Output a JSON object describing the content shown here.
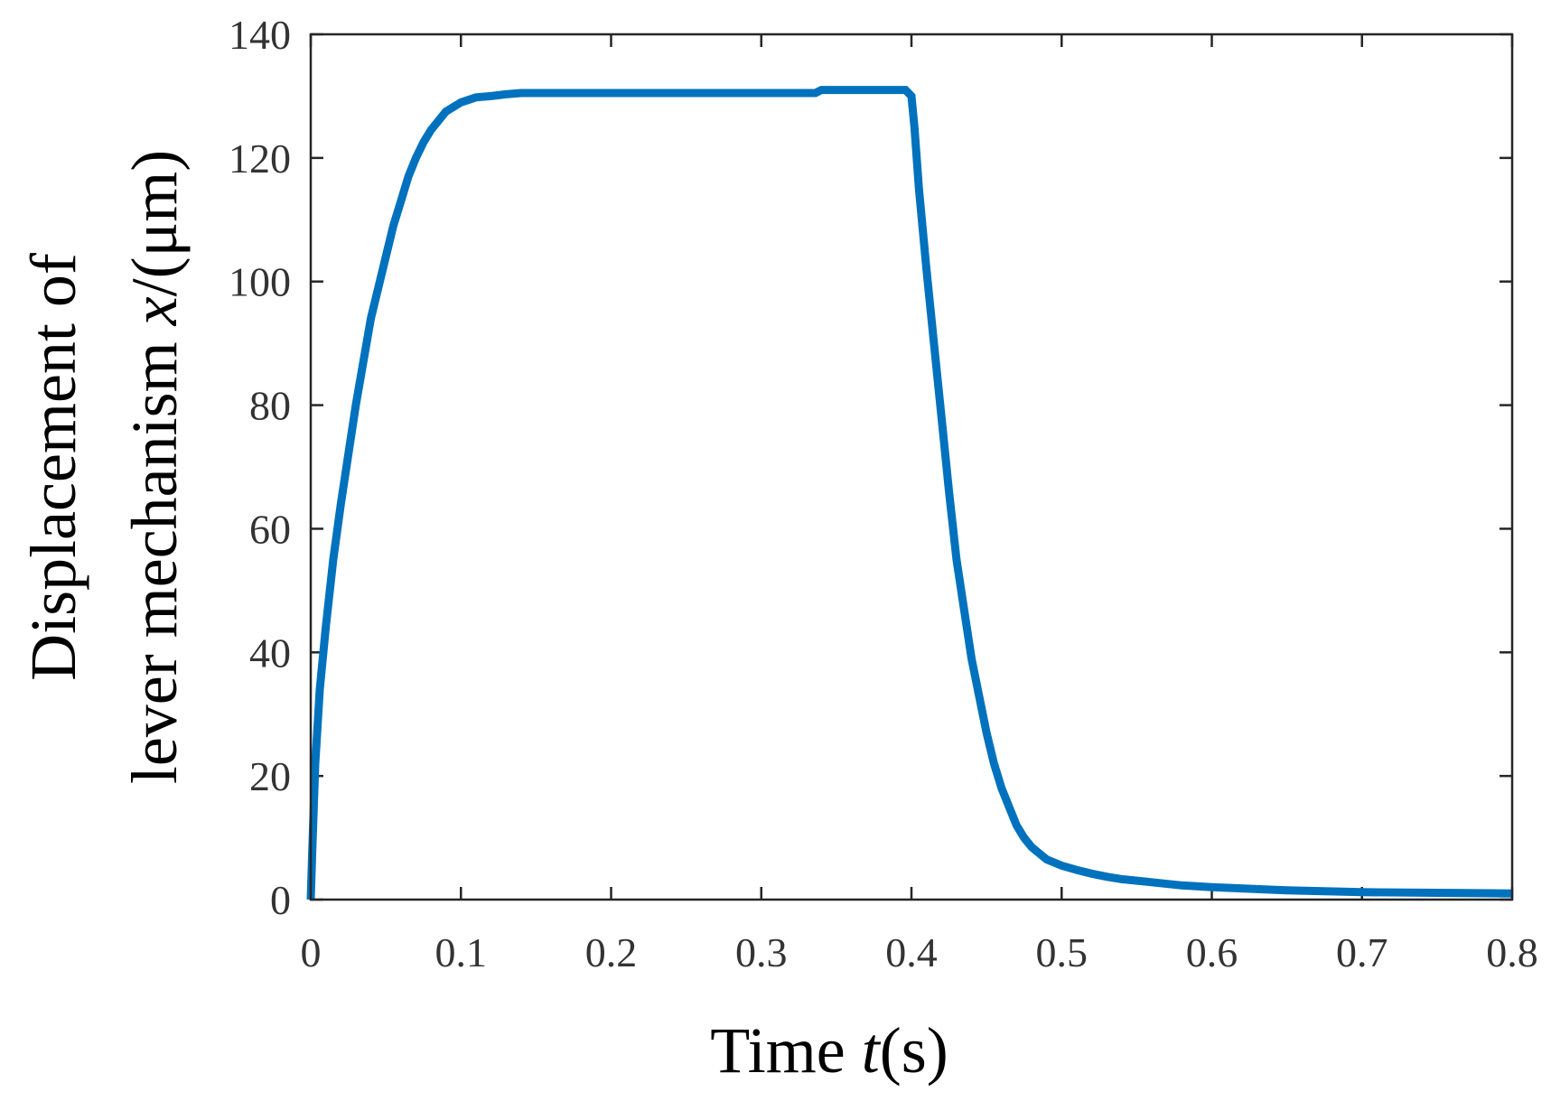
{
  "chart_data": {
    "type": "line",
    "title": "",
    "xlabel": {
      "prefix": "Time ",
      "variable": "t",
      "suffix": "(s)"
    },
    "ylabel": {
      "line1": "Displacement of",
      "line2_prefix": "lever mechanism ",
      "line2_variable": "x",
      "line2_suffix": "/(μm)"
    },
    "xlim": [
      0,
      0.8
    ],
    "ylim": [
      0,
      140
    ],
    "x_ticks": [
      0,
      0.1,
      0.2,
      0.3,
      0.4,
      0.5,
      0.6,
      0.7,
      0.8
    ],
    "x_tick_labels": [
      "0",
      "0.1",
      "0.2",
      "0.3",
      "0.4",
      "0.5",
      "0.6",
      "0.7",
      "0.8"
    ],
    "y_ticks": [
      0,
      20,
      40,
      60,
      80,
      100,
      120,
      140
    ],
    "y_tick_labels": [
      "0",
      "20",
      "40",
      "60",
      "80",
      "100",
      "120",
      "140"
    ],
    "grid": false,
    "series": [
      {
        "color": "#0072BD",
        "x": [
          0,
          0.001,
          0.003,
          0.006,
          0.01,
          0.015,
          0.02,
          0.025,
          0.03,
          0.035,
          0.04,
          0.045,
          0.05,
          0.055,
          0.06,
          0.065,
          0.07,
          0.075,
          0.08,
          0.09,
          0.1,
          0.11,
          0.12,
          0.13,
          0.14,
          0.2,
          0.3,
          0.336,
          0.34,
          0.396,
          0.4,
          0.402,
          0.405,
          0.41,
          0.415,
          0.42,
          0.425,
          0.43,
          0.435,
          0.44,
          0.445,
          0.45,
          0.455,
          0.46,
          0.465,
          0.47,
          0.475,
          0.48,
          0.485,
          0.49,
          0.5,
          0.51,
          0.52,
          0.53,
          0.54,
          0.56,
          0.58,
          0.6,
          0.65,
          0.7,
          0.75,
          0.8
        ],
        "y": [
          0,
          8,
          22,
          34,
          44,
          55,
          64,
          72,
          80,
          87,
          94,
          99,
          104,
          109,
          113,
          117,
          120,
          122.5,
          124.5,
          127.5,
          129,
          129.8,
          130,
          130.3,
          130.5,
          130.5,
          130.5,
          130.5,
          131,
          131,
          130,
          125,
          115,
          102,
          90,
          78,
          66,
          55,
          47,
          39,
          33,
          27,
          22,
          18,
          15,
          12,
          10,
          8.5,
          7.5,
          6.5,
          5.5,
          4.8,
          4.2,
          3.7,
          3.3,
          2.8,
          2.3,
          2,
          1.5,
          1.2,
          1.1,
          1
        ]
      }
    ]
  }
}
